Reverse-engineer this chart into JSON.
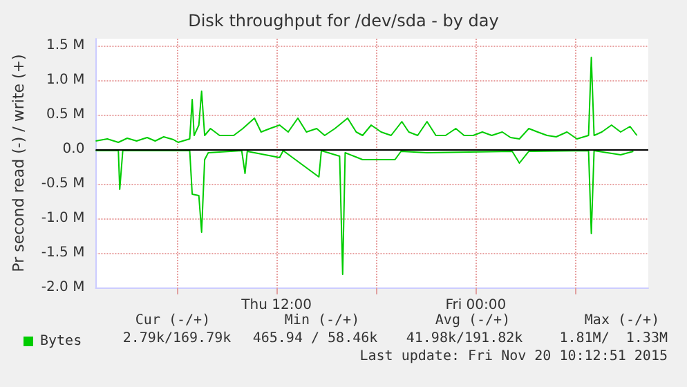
{
  "chart_data": {
    "type": "line",
    "title": "Disk throughput for /dev/sda - by day",
    "ylabel": "Pr second read (-) / write (+)",
    "xlim": [
      "2015-11-19T01:06",
      "2015-11-20T10:24"
    ],
    "ylim": [
      -2,
      1.6
    ],
    "xticks": [
      {
        "value": "2015-11-19T06:00",
        "label": null
      },
      {
        "value": "2015-11-19T12:00",
        "label": "Thu 12:00"
      },
      {
        "value": "2015-11-19T18:00",
        "label": null
      },
      {
        "value": "2015-11-20T00:00",
        "label": "Fri 00:00"
      },
      {
        "value": "2015-11-20T06:00",
        "label": null
      }
    ],
    "yticks": [
      {
        "value": -2,
        "label": "-2.0 M"
      },
      {
        "value": -1.5,
        "label": "-1.5 M"
      },
      {
        "value": -1,
        "label": "-1.0 M"
      },
      {
        "value": -0.5,
        "label": "-0.5 M"
      },
      {
        "value": 0,
        "label": "0.0"
      },
      {
        "value": 0.5,
        "label": "0.5 M"
      },
      {
        "value": 1,
        "label": "1.0 M"
      },
      {
        "value": 1.5,
        "label": "1.5 M"
      }
    ],
    "grid": true,
    "legend": "bottom left",
    "marker": "none",
    "ref_lines": [
      {
        "axis": "y",
        "value": 0,
        "color": "#000000"
      }
    ],
    "series": [
      {
        "name": "Bytes",
        "color": "#00cc00",
        "x": [
          "2015-11-19T01:06",
          "2015-11-19T01:48",
          "2015-11-19T02:28",
          "2015-11-19T03:00",
          "2015-11-19T03:34",
          "2015-11-19T04:12",
          "2015-11-19T04:41",
          "2015-11-19T05:12",
          "2015-11-19T05:47",
          "2015-11-19T06:04",
          "2015-11-19T06:46",
          "2015-11-19T06:55",
          "2015-11-19T07:02",
          "2015-11-19T07:19",
          "2015-11-19T07:29",
          "2015-11-19T07:40",
          "2015-11-19T08:01",
          "2015-11-19T08:34",
          "2015-11-19T09:25",
          "2015-11-19T09:58",
          "2015-11-19T10:40",
          "2015-11-19T11:04",
          "2015-11-19T11:36",
          "2015-11-19T12:11",
          "2015-11-19T12:42",
          "2015-11-19T13:17",
          "2015-11-19T13:48",
          "2015-11-19T14:25",
          "2015-11-19T14:54",
          "2015-11-19T15:31",
          "2015-11-19T16:17",
          "2015-11-19T16:48",
          "2015-11-19T17:11",
          "2015-11-19T17:42",
          "2015-11-19T18:18",
          "2015-11-19T18:54",
          "2015-11-19T19:33",
          "2015-11-19T19:58",
          "2015-11-19T20:30",
          "2015-11-19T21:04",
          "2015-11-19T21:36",
          "2015-11-19T22:11",
          "2015-11-19T22:48",
          "2015-11-19T23:18",
          "2015-11-19T23:51",
          "2015-11-20T00:24",
          "2015-11-20T00:58",
          "2015-11-20T01:36",
          "2015-11-20T02:06",
          "2015-11-20T02:38",
          "2015-11-20T03:12",
          "2015-11-20T03:44",
          "2015-11-20T04:18",
          "2015-11-20T04:51",
          "2015-11-20T05:30",
          "2015-11-20T06:06",
          "2015-11-20T06:48",
          "2015-11-20T06:58",
          "2015-11-20T07:08",
          "2015-11-20T07:36",
          "2015-11-20T08:11",
          "2015-11-20T08:44",
          "2015-11-20T09:18",
          "2015-11-20T09:43"
        ],
        "values": [
          0.12,
          0.15,
          0.1,
          0.16,
          0.12,
          0.17,
          0.12,
          0.18,
          0.14,
          0.1,
          0.15,
          0.72,
          0.2,
          0.35,
          0.84,
          0.2,
          0.3,
          0.2,
          0.2,
          0.3,
          0.45,
          0.25,
          0.3,
          0.35,
          0.25,
          0.45,
          0.25,
          0.3,
          0.2,
          0.3,
          0.45,
          0.25,
          0.2,
          0.35,
          0.25,
          0.2,
          0.4,
          0.25,
          0.2,
          0.4,
          0.2,
          0.2,
          0.3,
          0.2,
          0.2,
          0.25,
          0.2,
          0.25,
          0.17,
          0.15,
          0.3,
          0.25,
          0.2,
          0.18,
          0.25,
          0.15,
          0.2,
          1.33,
          0.2,
          0.25,
          0.35,
          0.25,
          0.33,
          0.2
        ]
      },
      {
        "color": "#00cc00",
        "x": [
          "2015-11-19T01:06",
          "2015-11-19T02:28",
          "2015-11-19T02:33",
          "2015-11-19T02:44",
          "2015-11-19T06:46",
          "2015-11-19T06:55",
          "2015-11-19T07:19",
          "2015-11-19T07:29",
          "2015-11-19T07:40",
          "2015-11-19T07:53",
          "2015-11-19T09:54",
          "2015-11-19T10:06",
          "2015-11-19T10:14",
          "2015-11-19T12:11",
          "2015-11-19T12:24",
          "2015-11-19T14:33",
          "2015-11-19T14:42",
          "2015-11-19T15:48",
          "2015-11-19T15:59",
          "2015-11-19T16:08",
          "2015-11-19T17:11",
          "2015-11-19T18:18",
          "2015-11-19T19:08",
          "2015-11-19T19:30",
          "2015-11-19T21:04",
          "2015-11-20T02:12",
          "2015-11-20T02:38",
          "2015-11-20T03:12",
          "2015-11-20T06:48",
          "2015-11-20T06:58",
          "2015-11-20T07:08",
          "2015-11-20T08:44",
          "2015-11-20T09:30"
        ],
        "values": [
          -0.02,
          -0.02,
          -0.58,
          -0.02,
          -0.02,
          -0.65,
          -0.67,
          -1.2,
          -0.15,
          -0.05,
          -0.02,
          -0.35,
          -0.03,
          -0.12,
          -0.02,
          -0.4,
          -0.02,
          -0.1,
          -1.81,
          -0.05,
          -0.15,
          -0.15,
          -0.15,
          -0.03,
          -0.05,
          -0.03,
          -0.2,
          -0.03,
          -0.02,
          -1.22,
          -0.02,
          -0.08,
          -0.03
        ]
      }
    ],
    "annotations": [
      "Cur (-/+)",
      "Min (-/+)",
      "Avg (-/+)",
      "Max (-/+)",
      "2.79k/169.79k",
      "465.94 / 58.46k",
      "41.98k/191.82k",
      "1.81M/  1.33M",
      "Last update: Fri Nov 20 10:12:51 2015"
    ]
  }
}
